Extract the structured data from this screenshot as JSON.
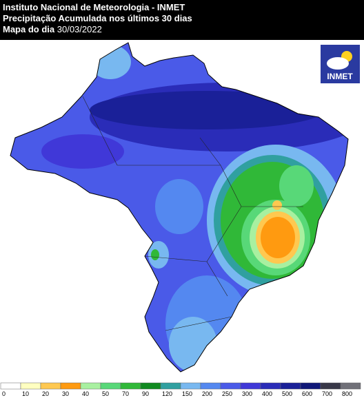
{
  "header": {
    "title": "Instituto Nacional de Meteorologia - INMET",
    "subtitle": "Precipitação Acumulada nos últimos 30 dias",
    "date_label": "Mapa do dia",
    "date": "30/03/2022"
  },
  "logo": {
    "text": "INMET"
  },
  "legend": {
    "items": [
      {
        "label": 0,
        "color": "#ffffff"
      },
      {
        "label": 10,
        "color": "#ffffc0"
      },
      {
        "label": 20,
        "color": "#ffc850"
      },
      {
        "label": 30,
        "color": "#ff9a10"
      },
      {
        "label": 40,
        "color": "#a8f0a0"
      },
      {
        "label": 50,
        "color": "#58d878"
      },
      {
        "label": 70,
        "color": "#30b838"
      },
      {
        "label": 90,
        "color": "#108a20"
      },
      {
        "label": 120,
        "color": "#30a0a0"
      },
      {
        "label": 150,
        "color": "#78b8f0"
      },
      {
        "label": 200,
        "color": "#5488f0"
      },
      {
        "label": 250,
        "color": "#4a5ae8"
      },
      {
        "label": 300,
        "color": "#4038d8"
      },
      {
        "label": 400,
        "color": "#2a2cb8"
      },
      {
        "label": 500,
        "color": "#1a2098"
      },
      {
        "label": 600,
        "color": "#101878"
      },
      {
        "label": 700,
        "color": "#383848"
      },
      {
        "label": 800,
        "color": "#707078"
      }
    ]
  }
}
